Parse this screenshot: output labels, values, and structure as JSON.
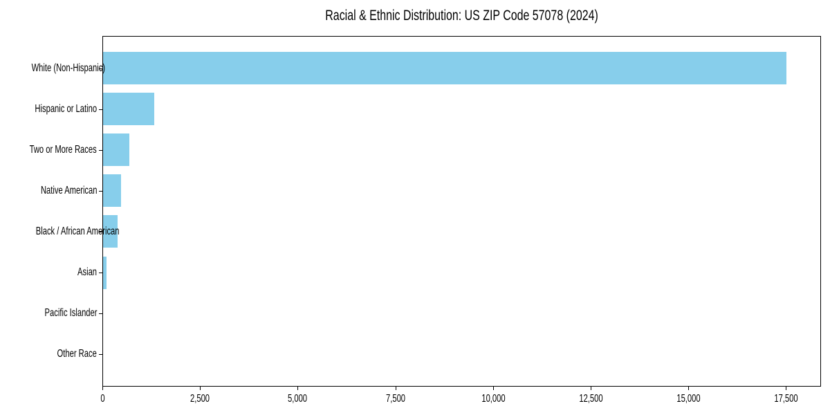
{
  "chart_data": {
    "type": "bar",
    "orientation": "horizontal",
    "title": "Racial & Ethnic Distribution: US ZIP Code 57078 (2024)",
    "xlabel": "",
    "ylabel": "",
    "categories": [
      "White (Non-Hispanic)",
      "Hispanic or Latino",
      "Two or More Races",
      "Native American",
      "Black / African American",
      "Asian",
      "Pacific Islander",
      "Other Race"
    ],
    "values": [
      17500,
      1310,
      670,
      460,
      370,
      90,
      0,
      0
    ],
    "xlim": [
      0,
      18400
    ],
    "x_ticks": [
      0,
      2500,
      5000,
      7500,
      10000,
      12500,
      15000,
      17500
    ],
    "x_tick_labels": [
      "0",
      "2,500",
      "5,000",
      "7,500",
      "10,000",
      "12,500",
      "15,000",
      "17,500"
    ],
    "grid": false,
    "legend": null,
    "bar_color": "#87ceeb",
    "spine_color": "#000000",
    "text_color": "#000000",
    "background_color": "#ffffff"
  }
}
